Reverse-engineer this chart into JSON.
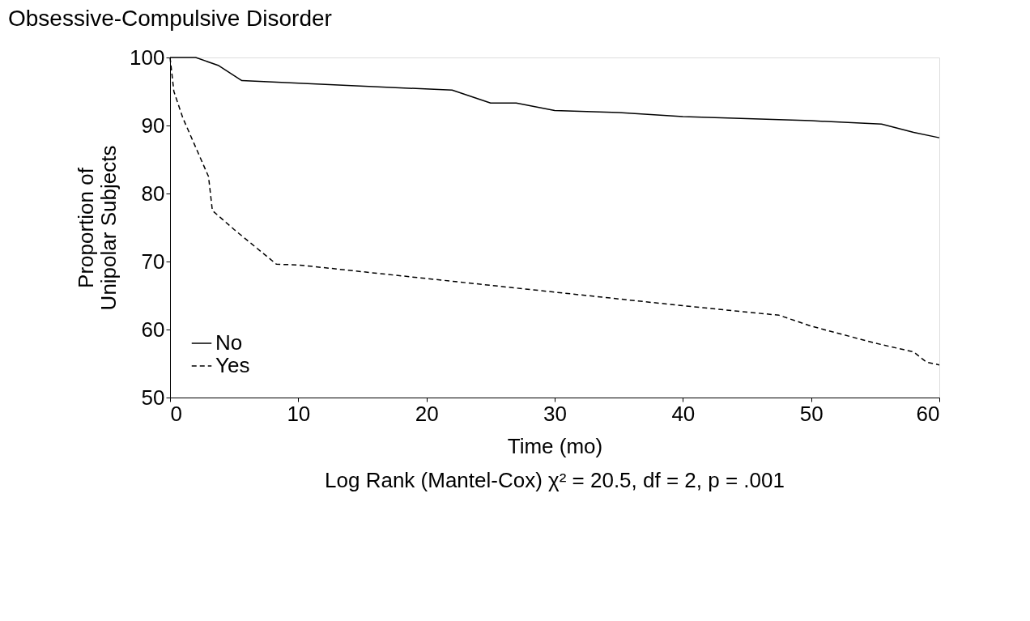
{
  "chart_data": {
    "type": "line",
    "title": "Obsessive-Compulsive Disorder",
    "xlabel": "Time (mo)",
    "ylabel": "Proportion of\nUnipolar Subjects",
    "annotations": [
      "Log Rank (Mantel-Cox) χ² = 20.5, df = 2, p = .001"
    ],
    "xlim": [
      0,
      60
    ],
    "xticks": [
      0,
      10,
      20,
      30,
      40,
      50,
      60
    ],
    "ylim": [
      50,
      100
    ],
    "yticks": [
      50,
      60,
      70,
      80,
      90,
      100
    ],
    "grid": false,
    "legend": "bottom left",
    "marker": "none",
    "series": [
      {
        "name": "No",
        "color": "#000000",
        "line_style": "solid",
        "x": [
          0,
          2,
          3.8,
          5.6,
          22,
          25,
          27,
          30,
          35,
          40,
          50,
          55.5,
          58,
          60
        ],
        "values": [
          100,
          100,
          98.8,
          96.6,
          95.2,
          93.3,
          93.3,
          92.2,
          91.9,
          91.3,
          90.7,
          90.2,
          89,
          88.2
        ]
      },
      {
        "name": "Yes",
        "color": "#000000",
        "line_style": "dashed",
        "x": [
          0,
          0.3,
          1,
          2,
          3,
          3.3,
          5,
          8.3,
          10,
          20,
          30,
          40,
          47.5,
          50,
          55,
          58,
          59,
          60
        ],
        "values": [
          100,
          95,
          91.1,
          86.8,
          82.5,
          77.5,
          74.7,
          69.6,
          69.5,
          67.5,
          65.5,
          63.5,
          62.1,
          60.5,
          58,
          56.7,
          55.2,
          54.8
        ]
      }
    ]
  }
}
